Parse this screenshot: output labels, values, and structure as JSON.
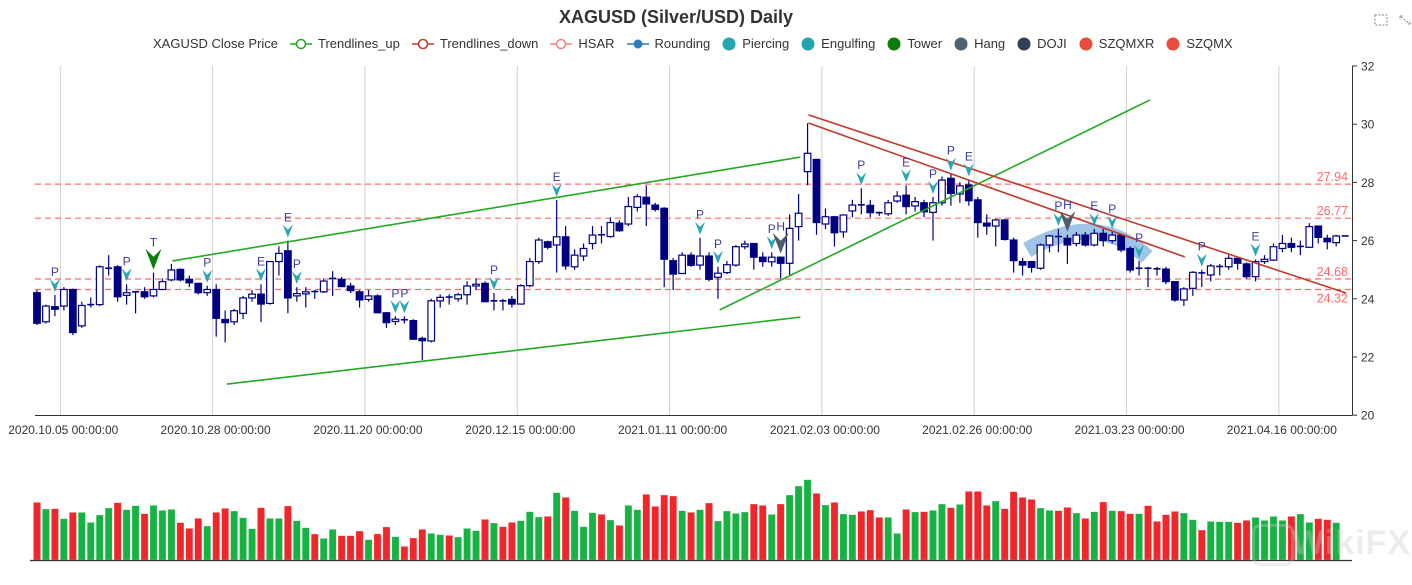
{
  "title": "XAGUSD (Silver/USD) Daily",
  "legend": [
    {
      "label": "XAGUSD Close Price",
      "icon": "none",
      "color": "#333333"
    },
    {
      "label": "Trendlines_up",
      "icon": "line-hollow-circle",
      "color": "#22aa22"
    },
    {
      "label": "Trendlines_down",
      "icon": "line-hollow-circle",
      "color": "#c0392b"
    },
    {
      "label": "HSAR",
      "icon": "line-hollow-circle",
      "color": "#ff7f7f"
    },
    {
      "label": "Rounding",
      "icon": "line-filled-circle",
      "color": "#2e7fc0"
    },
    {
      "label": "Piercing",
      "icon": "circle",
      "color": "#26a4b0"
    },
    {
      "label": "Engulfing",
      "icon": "circle",
      "color": "#26a4b0"
    },
    {
      "label": "Tower",
      "icon": "circle",
      "color": "#0a7d0a"
    },
    {
      "label": "Hang",
      "icon": "circle",
      "color": "#4f6272"
    },
    {
      "label": "DOJI",
      "icon": "circle",
      "color": "#2f4258"
    },
    {
      "label": "SZQMXR",
      "icon": "circle",
      "color": "#e74c3c"
    },
    {
      "label": "SZQMX",
      "icon": "circle",
      "color": "#e74c3c"
    }
  ],
  "toolbox": [
    "data-zoom-icon",
    "zoom-reset-icon"
  ],
  "watermark": "WikiFX",
  "chart_data": {
    "type": "candlestick",
    "title": "XAGUSD (Silver/USD) Daily",
    "ylim": [
      20,
      32
    ],
    "yticks": [
      20,
      22,
      24,
      26,
      28,
      30,
      32
    ],
    "grid": "vertical",
    "xtick_labels": [
      "2020.10.05 00:00:00",
      "2020.10.28 00:00:00",
      "2020.11.20 00:00:00",
      "2020.12.15 00:00:00",
      "2021.01.11 00:00:00",
      "2021.02.03 00:00:00",
      "2021.02.26 00:00:00",
      "2021.03.23 00:00:00",
      "2021.04.16 00:00:00"
    ],
    "xtick_index": [
      2.6,
      19.6,
      36.6,
      53.6,
      70.6,
      87.6,
      104.6,
      121.6,
      138.6
    ],
    "ohlc_format": [
      "open",
      "close",
      "low",
      "high"
    ],
    "ohlc": [
      [
        24.21,
        23.16,
        23.1,
        24.3
      ],
      [
        23.21,
        23.75,
        23.15,
        23.8
      ],
      [
        23.73,
        23.64,
        23.4,
        24.13
      ],
      [
        23.75,
        24.32,
        23.6,
        24.4
      ],
      [
        24.32,
        22.84,
        22.75,
        24.35
      ],
      [
        23.07,
        23.77,
        23.0,
        23.9
      ],
      [
        23.77,
        23.8,
        23.7,
        24.05
      ],
      [
        23.8,
        25.1,
        23.75,
        25.15
      ],
      [
        25.0,
        25.05,
        24.8,
        25.5
      ],
      [
        25.1,
        24.07,
        23.9,
        25.15
      ],
      [
        24.12,
        24.21,
        23.8,
        24.5
      ],
      [
        24.24,
        24.24,
        23.5,
        24.25
      ],
      [
        24.24,
        24.07,
        24.0,
        24.4
      ],
      [
        24.1,
        24.32,
        24.05,
        24.9
      ],
      [
        24.32,
        24.59,
        24.3,
        24.7
      ],
      [
        24.65,
        24.99,
        24.6,
        25.2
      ],
      [
        25.01,
        24.65,
        24.6,
        25.05
      ],
      [
        24.67,
        24.55,
        24.4,
        24.8
      ],
      [
        24.53,
        24.21,
        24.15,
        24.55
      ],
      [
        24.21,
        24.32,
        24.1,
        24.45
      ],
      [
        24.32,
        23.33,
        22.7,
        24.5
      ],
      [
        23.29,
        23.18,
        22.5,
        23.6
      ],
      [
        23.21,
        23.59,
        23.1,
        23.65
      ],
      [
        23.5,
        24.03,
        23.3,
        24.1
      ],
      [
        24.03,
        24.16,
        23.9,
        24.3
      ],
      [
        24.16,
        23.82,
        23.2,
        24.5
      ],
      [
        23.84,
        25.28,
        23.8,
        25.3
      ],
      [
        25.28,
        25.56,
        24.8,
        25.8
      ],
      [
        25.65,
        24.03,
        23.5,
        26.0
      ],
      [
        24.1,
        24.18,
        23.9,
        24.4
      ],
      [
        24.17,
        24.24,
        23.7,
        24.4
      ],
      [
        24.24,
        24.25,
        24.0,
        24.3
      ],
      [
        24.24,
        24.61,
        24.2,
        24.7
      ],
      [
        24.65,
        24.7,
        24.1,
        24.95
      ],
      [
        24.67,
        24.42,
        24.4,
        24.75
      ],
      [
        24.44,
        24.28,
        24.2,
        24.55
      ],
      [
        24.24,
        23.96,
        23.7,
        24.3
      ],
      [
        23.98,
        24.1,
        23.9,
        24.3
      ],
      [
        24.1,
        23.52,
        23.5,
        24.15
      ],
      [
        23.52,
        23.18,
        23.0,
        23.55
      ],
      [
        23.22,
        23.3,
        23.1,
        23.4
      ],
      [
        23.27,
        23.28,
        23.15,
        23.4
      ],
      [
        23.25,
        22.61,
        22.6,
        23.3
      ],
      [
        22.64,
        22.56,
        21.9,
        22.7
      ],
      [
        22.55,
        23.93,
        22.5,
        24.0
      ],
      [
        23.93,
        24.05,
        23.7,
        24.15
      ],
      [
        24.05,
        24.06,
        23.8,
        24.15
      ],
      [
        24.0,
        24.14,
        23.9,
        24.2
      ],
      [
        24.14,
        24.44,
        23.8,
        24.6
      ],
      [
        24.44,
        24.5,
        24.3,
        24.7
      ],
      [
        24.53,
        23.9,
        23.9,
        24.6
      ],
      [
        23.92,
        23.93,
        23.6,
        24.2
      ],
      [
        23.92,
        23.93,
        23.6,
        24.0
      ],
      [
        23.98,
        23.82,
        23.7,
        24.1
      ],
      [
        23.82,
        24.45,
        23.8,
        24.5
      ],
      [
        24.45,
        25.28,
        24.4,
        25.4
      ],
      [
        25.28,
        26.02,
        25.2,
        26.1
      ],
      [
        25.96,
        25.77,
        25.7,
        26.0
      ],
      [
        25.85,
        26.13,
        24.9,
        27.4
      ],
      [
        26.13,
        25.13,
        25.0,
        26.5
      ],
      [
        25.1,
        25.5,
        25.0,
        25.7
      ],
      [
        25.47,
        25.73,
        25.3,
        25.9
      ],
      [
        25.9,
        26.19,
        25.7,
        26.5
      ],
      [
        26.19,
        26.2,
        25.9,
        26.5
      ],
      [
        26.14,
        26.62,
        26.1,
        26.8
      ],
      [
        26.6,
        26.34,
        26.3,
        26.7
      ],
      [
        26.57,
        27.17,
        26.5,
        27.5
      ],
      [
        27.14,
        27.51,
        27.0,
        27.6
      ],
      [
        27.49,
        27.26,
        26.5,
        27.9
      ],
      [
        27.22,
        27.07,
        27.0,
        27.3
      ],
      [
        27.11,
        25.36,
        24.4,
        27.15
      ],
      [
        25.31,
        24.85,
        24.3,
        25.4
      ],
      [
        24.87,
        25.5,
        24.85,
        25.6
      ],
      [
        25.5,
        25.15,
        25.1,
        25.6
      ],
      [
        25.16,
        25.47,
        25.0,
        26.1
      ],
      [
        25.47,
        24.67,
        24.6,
        25.6
      ],
      [
        24.74,
        24.88,
        24.0,
        25.1
      ],
      [
        24.9,
        25.17,
        24.85,
        25.3
      ],
      [
        25.16,
        25.79,
        25.1,
        25.85
      ],
      [
        25.79,
        25.88,
        25.7,
        26.0
      ],
      [
        25.9,
        25.43,
        25.0,
        25.9
      ],
      [
        25.43,
        25.28,
        25.1,
        25.6
      ],
      [
        25.27,
        25.43,
        25.1,
        25.6
      ],
      [
        25.43,
        25.22,
        24.7,
        25.45
      ],
      [
        25.22,
        26.42,
        24.8,
        26.9
      ],
      [
        26.48,
        26.94,
        26.0,
        27.6
      ],
      [
        28.37,
        29.0,
        27.9,
        30.03
      ],
      [
        28.79,
        26.62,
        26.2,
        28.8
      ],
      [
        26.57,
        26.82,
        26.4,
        27.1
      ],
      [
        26.82,
        26.27,
        25.8,
        26.85
      ],
      [
        26.3,
        26.88,
        26.1,
        26.9
      ],
      [
        27.02,
        27.22,
        26.8,
        27.4
      ],
      [
        27.22,
        27.23,
        26.9,
        27.8
      ],
      [
        27.21,
        26.96,
        26.8,
        27.4
      ],
      [
        26.96,
        26.91,
        26.85,
        27.0
      ],
      [
        26.92,
        27.3,
        26.85,
        27.4
      ],
      [
        27.36,
        27.53,
        27.3,
        27.7
      ],
      [
        27.56,
        27.17,
        26.9,
        27.9
      ],
      [
        27.19,
        27.34,
        27.0,
        27.5
      ],
      [
        27.3,
        26.99,
        26.8,
        27.4
      ],
      [
        26.97,
        27.3,
        26.0,
        27.5
      ],
      [
        27.3,
        28.08,
        27.2,
        28.2
      ],
      [
        28.14,
        27.62,
        27.2,
        28.3
      ],
      [
        27.6,
        27.88,
        27.3,
        28.0
      ],
      [
        27.91,
        27.37,
        27.2,
        28.1
      ],
      [
        27.4,
        26.62,
        26.1,
        27.5
      ],
      [
        26.6,
        26.5,
        26.2,
        26.9
      ],
      [
        26.5,
        26.71,
        25.8,
        26.75
      ],
      [
        26.71,
        26.04,
        26.0,
        26.75
      ],
      [
        26.02,
        25.31,
        24.9,
        26.1
      ],
      [
        25.28,
        25.16,
        24.8,
        25.4
      ],
      [
        25.28,
        25.08,
        24.9,
        25.3
      ],
      [
        25.05,
        25.85,
        25.0,
        25.9
      ],
      [
        25.85,
        26.16,
        25.6,
        26.2
      ],
      [
        26.13,
        26.14,
        25.6,
        26.4
      ],
      [
        26.08,
        25.85,
        25.2,
        26.2
      ],
      [
        25.9,
        26.19,
        25.8,
        26.3
      ],
      [
        26.19,
        25.85,
        25.8,
        26.3
      ],
      [
        25.85,
        26.25,
        25.8,
        26.4
      ],
      [
        26.25,
        26.0,
        25.8,
        26.4
      ],
      [
        26.0,
        26.19,
        25.9,
        26.3
      ],
      [
        26.19,
        25.68,
        25.6,
        26.2
      ],
      [
        25.73,
        24.99,
        24.9,
        25.8
      ],
      [
        25.05,
        25.04,
        24.8,
        25.3
      ],
      [
        25.05,
        25.05,
        24.4,
        25.1
      ],
      [
        25.02,
        25.03,
        24.8,
        25.1
      ],
      [
        25.02,
        24.59,
        24.5,
        25.1
      ],
      [
        24.59,
        23.96,
        23.9,
        24.6
      ],
      [
        23.96,
        24.34,
        23.75,
        24.4
      ],
      [
        24.36,
        24.91,
        24.1,
        24.95
      ],
      [
        24.88,
        24.89,
        24.4,
        25.0
      ],
      [
        24.82,
        25.13,
        24.6,
        25.2
      ],
      [
        25.1,
        25.11,
        24.8,
        25.2
      ],
      [
        25.1,
        25.39,
        25.0,
        25.5
      ],
      [
        25.39,
        25.22,
        25.0,
        25.45
      ],
      [
        25.2,
        24.76,
        24.7,
        25.25
      ],
      [
        24.76,
        25.28,
        24.6,
        25.35
      ],
      [
        25.28,
        25.36,
        25.2,
        25.5
      ],
      [
        25.33,
        25.79,
        25.3,
        25.9
      ],
      [
        25.73,
        25.9,
        25.6,
        26.2
      ],
      [
        25.9,
        25.77,
        25.6,
        26.1
      ],
      [
        25.79,
        25.8,
        25.5,
        26.0
      ],
      [
        25.77,
        26.48,
        25.75,
        26.6
      ],
      [
        26.5,
        26.11,
        25.9,
        26.5
      ],
      [
        26.08,
        25.96,
        25.7,
        26.2
      ],
      [
        25.93,
        26.16,
        25.8,
        26.2
      ],
      [
        26.16,
        26.16,
        26.16,
        26.16
      ]
    ],
    "volume_relative": [
      173,
      153,
      154,
      124,
      143,
      143,
      113,
      135,
      156,
      172,
      151,
      163,
      139,
      164,
      149,
      152,
      112,
      95,
      125,
      102,
      143,
      155,
      147,
      127,
      94,
      157,
      125,
      125,
      162,
      118,
      97,
      78,
      65,
      92,
      73,
      73,
      87,
      61,
      78,
      99,
      70,
      41,
      66,
      92,
      80,
      76,
      74,
      69,
      95,
      88,
      122,
      111,
      100,
      113,
      118,
      145,
      129,
      131,
      202,
      188,
      148,
      100,
      142,
      137,
      120,
      104,
      164,
      151,
      197,
      161,
      195,
      192,
      148,
      143,
      151,
      171,
      117,
      147,
      140,
      144,
      168,
      164,
      137,
      168,
      195,
      222,
      241,
      200,
      165,
      173,
      138,
      136,
      146,
      150,
      128,
      128,
      80,
      152,
      144,
      145,
      149,
      168,
      157,
      167,
      206,
      206,
      164,
      177,
      154,
      205,
      188,
      182,
      156,
      149,
      148,
      158,
      141,
      125,
      145,
      174,
      148,
      147,
      139,
      139,
      163,
      116,
      136,
      146,
      141,
      121,
      90,
      116,
      115,
      115,
      112,
      119,
      128,
      119,
      131,
      119,
      131,
      138,
      113,
      124,
      121,
      112
    ],
    "volume_red": [
      1,
      0,
      1,
      0,
      1,
      0,
      0,
      0,
      0,
      1,
      0,
      0,
      1,
      0,
      0,
      0,
      1,
      1,
      1,
      0,
      1,
      1,
      0,
      0,
      0,
      1,
      0,
      0,
      1,
      0,
      0,
      1,
      0,
      0,
      1,
      1,
      1,
      0,
      1,
      1,
      0,
      1,
      1,
      1,
      0,
      0,
      1,
      0,
      0,
      0,
      1,
      0,
      1,
      1,
      0,
      0,
      0,
      1,
      0,
      1,
      0,
      0,
      0,
      1,
      0,
      1,
      0,
      0,
      1,
      1,
      1,
      1,
      0,
      1,
      0,
      1,
      0,
      0,
      0,
      0,
      1,
      1,
      0,
      1,
      0,
      0,
      0,
      1,
      0,
      1,
      0,
      0,
      1,
      1,
      1,
      0,
      0,
      1,
      0,
      1,
      0,
      0,
      1,
      0,
      1,
      1,
      1,
      0,
      1,
      1,
      1,
      1,
      0,
      0,
      1,
      1,
      0,
      1,
      0,
      1,
      0,
      1,
      1,
      0,
      1,
      1,
      1,
      1,
      0,
      0,
      1,
      0,
      0,
      0,
      1,
      1,
      0,
      0,
      0,
      0,
      1,
      0,
      0,
      1,
      1,
      0
    ],
    "hsar_levels": [
      {
        "value": 27.94,
        "label": "27.94"
      },
      {
        "value": 26.77,
        "label": "26.77"
      },
      {
        "value": 24.68,
        "label": "24.68"
      },
      {
        "value": 24.32,
        "label": "24.32"
      }
    ],
    "trendlines_up": [
      {
        "start": [
          15.1,
          25.3
        ],
        "end": [
          85.2,
          28.87
        ]
      },
      {
        "start": [
          21.2,
          21.07
        ],
        "end": [
          85.2,
          23.37
        ]
      },
      {
        "start": [
          76.2,
          23.62
        ],
        "end": [
          124.2,
          30.83
        ]
      }
    ],
    "trendlines_down": [
      {
        "start": [
          86.1,
          30.32
        ],
        "end": [
          146.1,
          24.2
        ]
      },
      {
        "start": [
          86.1,
          30.04
        ],
        "end": [
          128.1,
          25.44
        ]
      }
    ],
    "rounding": {
      "start": [
        110.5,
        25.68
      ],
      "peak": [
        117.7,
        26.3
      ],
      "end": [
        123.9,
        25.44
      ]
    },
    "patterns": [
      {
        "index": 2,
        "label": "P",
        "type": "Piercing"
      },
      {
        "index": 10,
        "label": "P",
        "type": "Piercing"
      },
      {
        "index": 13,
        "label": "T",
        "type": "Tower"
      },
      {
        "index": 19,
        "label": "P",
        "type": "Piercing"
      },
      {
        "index": 25,
        "label": "E",
        "type": "Engulfing"
      },
      {
        "index": 28,
        "label": "E",
        "type": "Engulfing"
      },
      {
        "index": 29,
        "label": "P",
        "type": "Piercing"
      },
      {
        "index": 40,
        "label": "P",
        "type": "Piercing"
      },
      {
        "index": 41,
        "label": "P",
        "type": "Piercing"
      },
      {
        "index": 51,
        "label": "P",
        "type": "Piercing"
      },
      {
        "index": 58,
        "label": "E",
        "type": "Engulfing"
      },
      {
        "index": 74,
        "label": "P",
        "type": "Piercing"
      },
      {
        "index": 76,
        "label": "P",
        "type": "Piercing"
      },
      {
        "index": 82,
        "label": "P",
        "type": "Piercing"
      },
      {
        "index": 83,
        "label": "H",
        "type": "Hang"
      },
      {
        "index": 92,
        "label": "P",
        "type": "Piercing"
      },
      {
        "index": 97,
        "label": "E",
        "type": "Engulfing"
      },
      {
        "index": 100,
        "label": "P",
        "type": "Piercing"
      },
      {
        "index": 102,
        "label": "P",
        "type": "Piercing"
      },
      {
        "index": 104,
        "label": "E",
        "type": "Engulfing"
      },
      {
        "index": 114,
        "label": "P",
        "type": "Piercing"
      },
      {
        "index": 115,
        "label": "H",
        "type": "Hang"
      },
      {
        "index": 118,
        "label": "E",
        "type": "Engulfing"
      },
      {
        "index": 120,
        "label": "P",
        "type": "Piercing"
      },
      {
        "index": 123,
        "label": "P",
        "type": "Piercing"
      },
      {
        "index": 130,
        "label": "P",
        "type": "Piercing"
      },
      {
        "index": 136,
        "label": "E",
        "type": "Engulfing"
      }
    ],
    "colors": {
      "candle": "#000080",
      "up_line": "#22aa22",
      "down_line": "#c0392b",
      "hsar": "#ff6b6b",
      "rounding": "#7fb0dc",
      "piercing": "#2aa7b3",
      "tower": "#0a7d0a",
      "hang": "#4d5d6b",
      "vol_red": "#f0262b",
      "vol_green": "#16b343"
    }
  }
}
